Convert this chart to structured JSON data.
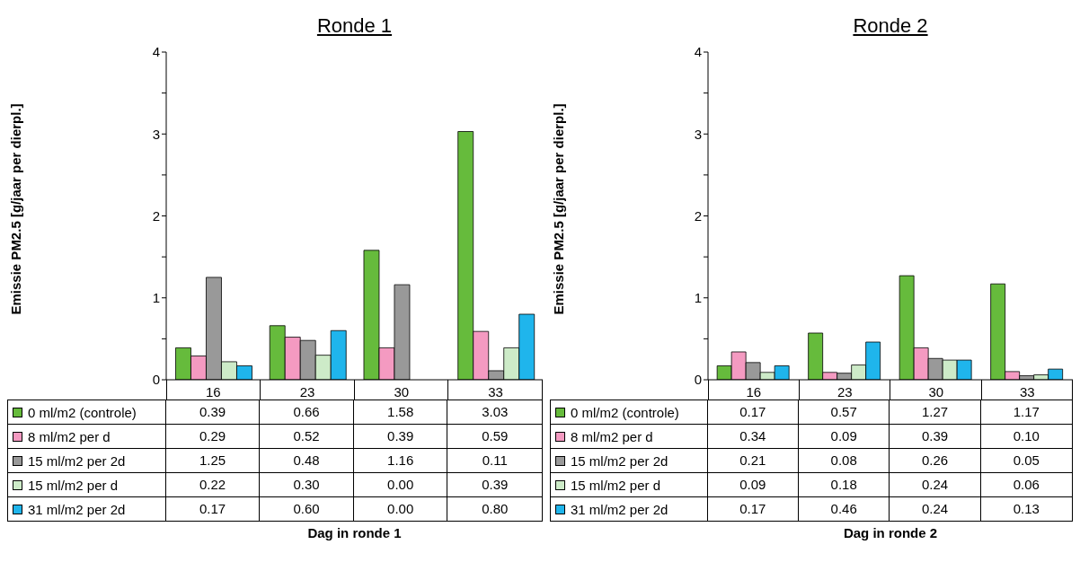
{
  "chart_data": [
    {
      "type": "bar",
      "title": "Ronde 1",
      "xlabel": "Dag in ronde 1",
      "ylabel": "Emissie PM2.5 [g/jaar per dierpl.]",
      "categories": [
        "16",
        "23",
        "30",
        "33"
      ],
      "ylim": [
        0,
        4
      ],
      "yticks": [
        0,
        {
          "value": 0.5,
          "label": null
        },
        1,
        {
          "value": 1.5,
          "label": null
        },
        2,
        {
          "value": 2.5,
          "label": null
        },
        3,
        {
          "value": 3.5,
          "label": null
        },
        4
      ],
      "grid": false,
      "legend": "bottom",
      "series": [
        {
          "name": "0 ml/m2 (controle)",
          "color": "#66bb3c",
          "values": [
            0.39,
            0.66,
            1.58,
            3.03
          ],
          "value_labels": [
            "0.39",
            "0.66",
            "1.58",
            "3.03"
          ]
        },
        {
          "name": "8 ml/m2 per d",
          "color": "#f49ac1",
          "values": [
            0.29,
            0.52,
            0.39,
            0.59
          ],
          "value_labels": [
            "0.29",
            "0.52",
            "0.39",
            "0.59"
          ]
        },
        {
          "name": "15 ml/m2 per 2d",
          "color": "#999999",
          "values": [
            1.25,
            0.48,
            1.16,
            0.11
          ],
          "value_labels": [
            "1.25",
            "0.48",
            "1.16",
            "0.11"
          ]
        },
        {
          "name": "15 ml/m2 per d",
          "color": "#cdebc8",
          "values": [
            0.22,
            0.3,
            0,
            0.39
          ],
          "value_labels": [
            "0.22",
            "0.30",
            "0.00",
            "0.39"
          ]
        },
        {
          "name": "31 ml/m2 per 2d",
          "color": "#1fb5ec",
          "values": [
            0.17,
            0.6,
            0,
            0.8
          ],
          "value_labels": [
            "0.17",
            "0.60",
            "0.00",
            "0.80"
          ]
        }
      ]
    },
    {
      "type": "bar",
      "title": "Ronde 2",
      "xlabel": "Dag in ronde 2",
      "ylabel": "Emissie PM2.5 [g/jaar per dierpl.]",
      "categories": [
        "16",
        "23",
        "30",
        "33"
      ],
      "ylim": [
        0,
        4
      ],
      "yticks": [
        0,
        {
          "value": 0.5,
          "label": null
        },
        1,
        {
          "value": 1.5,
          "label": null
        },
        2,
        {
          "value": 2.5,
          "label": null
        },
        3,
        {
          "value": 3.5,
          "label": null
        },
        4
      ],
      "grid": false,
      "legend": "bottom",
      "series": [
        {
          "name": "0 ml/m2 (controle)",
          "color": "#66bb3c",
          "values": [
            0.17,
            0.57,
            1.27,
            1.17
          ],
          "value_labels": [
            "0.17",
            "0.57",
            "1.27",
            "1.17"
          ]
        },
        {
          "name": "8 ml/m2 per d",
          "color": "#f49ac1",
          "values": [
            0.34,
            0.09,
            0.39,
            0.1
          ],
          "value_labels": [
            "0.34",
            "0.09",
            "0.39",
            "0.10"
          ]
        },
        {
          "name": "15 ml/m2 per 2d",
          "color": "#999999",
          "values": [
            0.21,
            0.08,
            0.26,
            0.05
          ],
          "value_labels": [
            "0.21",
            "0.08",
            "0.26",
            "0.05"
          ]
        },
        {
          "name": "15 ml/m2 per d",
          "color": "#cdebc8",
          "values": [
            0.09,
            0.18,
            0.24,
            0.06
          ],
          "value_labels": [
            "0.09",
            "0.18",
            "0.24",
            "0.06"
          ]
        },
        {
          "name": "31 ml/m2 per 2d",
          "color": "#1fb5ec",
          "values": [
            0.17,
            0.46,
            0.24,
            0.13
          ],
          "value_labels": [
            "0.17",
            "0.46",
            "0.24",
            "0.13"
          ]
        }
      ]
    }
  ]
}
